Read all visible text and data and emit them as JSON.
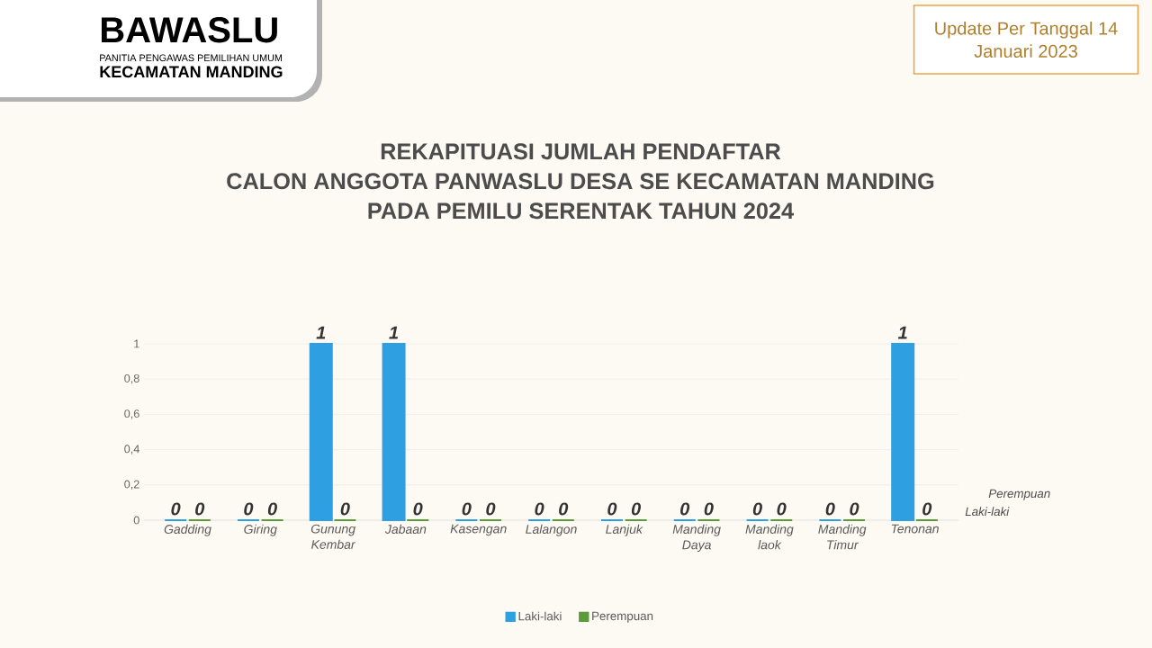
{
  "chart_data": {
    "type": "bar",
    "title": "REKAPITUASI JUMLAH PENDAFTAR",
    "subtitle": "CALON ANGGOTA PANWASLU DESA SE KECAMATAN MANDING PADA PEMILU SERENTAK TAHUN 2024",
    "categories": [
      "Gadding",
      "Giring",
      "Gunung Kembar",
      "Jabaan",
      "Kasengan",
      "Lalangon",
      "Lanjuk",
      "Manding Daya",
      "Manding laok",
      "Manding Timur",
      "Tenonan"
    ],
    "series": [
      {
        "name": "Laki-laki",
        "color": "#2e9fe0",
        "values": [
          0,
          0,
          1,
          1,
          0,
          0,
          0,
          0,
          0,
          0,
          1
        ]
      },
      {
        "name": "Perempuan",
        "color": "#5b9b3a",
        "values": [
          0,
          0,
          0,
          0,
          0,
          0,
          0,
          0,
          0,
          0,
          0
        ]
      }
    ],
    "ylim": [
      0,
      1
    ],
    "yticks": [
      0,
      {
        "value": 0.2,
        "label": "0,2"
      },
      {
        "value": 0.4,
        "label": "0,4"
      },
      {
        "value": 0.6,
        "label": "0,6"
      },
      {
        "value": 0.8,
        "label": "0,8"
      },
      1
    ],
    "grid": "y",
    "legend": "bottom",
    "data_labels": true,
    "annotations": [
      "BAWASLU",
      "PANITIA PENGAWAS PEMILIHAN UMUM",
      "KECAMATAN MANDING",
      "Update Per Tanggal 14 Januari 2023"
    ]
  }
}
